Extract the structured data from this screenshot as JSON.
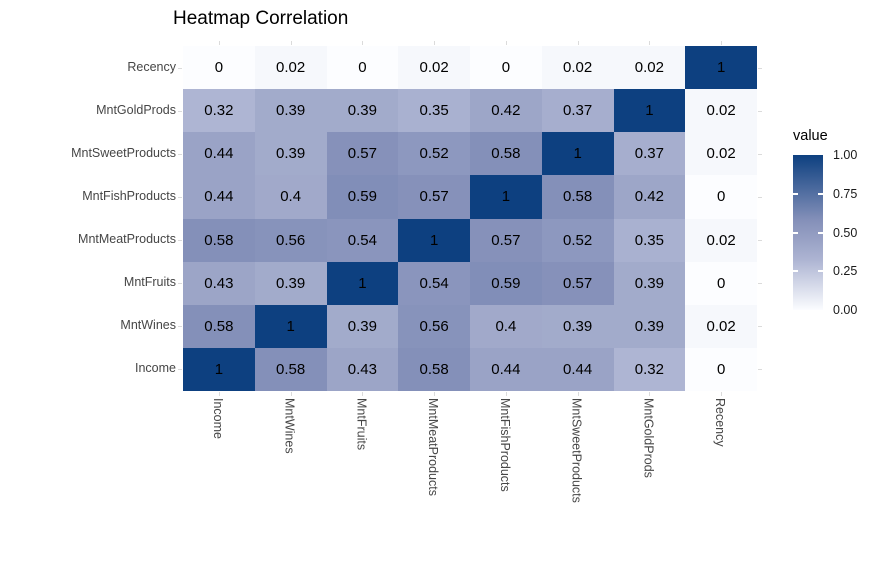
{
  "chart": {
    "title": "Heatmap Correlation"
  },
  "chart_data": {
    "type": "heatmap",
    "title": "Heatmap Correlation",
    "x_categories": [
      "Income",
      "MntWines",
      "MntFruits",
      "MntMeatProducts",
      "MntFishProducts",
      "MntSweetProducts",
      "MntGoldProds",
      "Recency"
    ],
    "y_categories_top_to_bottom": [
      "Recency",
      "MntGoldProds",
      "MntSweetProducts",
      "MntFishProducts",
      "MntMeatProducts",
      "MntFruits",
      "MntWines",
      "Income"
    ],
    "cell_labels": [
      [
        "0",
        "0.02",
        "0",
        "0.02",
        "0",
        "0.02",
        "0.02",
        "1"
      ],
      [
        "0.32",
        "0.39",
        "0.39",
        "0.35",
        "0.42",
        "0.37",
        "1",
        "0.02"
      ],
      [
        "0.44",
        "0.39",
        "0.57",
        "0.52",
        "0.58",
        "1",
        "0.37",
        "0.02"
      ],
      [
        "0.44",
        "0.4",
        "0.59",
        "0.57",
        "1",
        "0.58",
        "0.42",
        "0"
      ],
      [
        "0.58",
        "0.56",
        "0.54",
        "1",
        "0.57",
        "0.52",
        "0.35",
        "0.02"
      ],
      [
        "0.43",
        "0.39",
        "1",
        "0.54",
        "0.59",
        "0.57",
        "0.39",
        "0"
      ],
      [
        "0.58",
        "1",
        "0.39",
        "0.56",
        "0.4",
        "0.39",
        "0.39",
        "0.02"
      ],
      [
        "1",
        "0.58",
        "0.43",
        "0.58",
        "0.44",
        "0.44",
        "0.32",
        "0"
      ]
    ],
    "values": [
      [
        0,
        0.02,
        0,
        0.02,
        0,
        0.02,
        0.02,
        1
      ],
      [
        0.32,
        0.39,
        0.39,
        0.35,
        0.42,
        0.37,
        1,
        0.02
      ],
      [
        0.44,
        0.39,
        0.57,
        0.52,
        0.58,
        1,
        0.37,
        0.02
      ],
      [
        0.44,
        0.4,
        0.59,
        0.57,
        1,
        0.58,
        0.42,
        0
      ],
      [
        0.58,
        0.56,
        0.54,
        1,
        0.57,
        0.52,
        0.35,
        0.02
      ],
      [
        0.43,
        0.39,
        1,
        0.54,
        0.59,
        0.57,
        0.39,
        0
      ],
      [
        0.58,
        1,
        0.39,
        0.56,
        0.4,
        0.39,
        0.39,
        0.02
      ],
      [
        1,
        0.58,
        0.43,
        0.58,
        0.44,
        0.44,
        0.32,
        0
      ]
    ],
    "legend": {
      "title": "value",
      "tick_labels": [
        "1.00",
        "0.75",
        "0.50",
        "0.25",
        "0.00"
      ],
      "tick_values": [
        1.0,
        0.75,
        0.5,
        0.25,
        0.0
      ],
      "position": "right"
    },
    "value_range": [
      0,
      1
    ],
    "grid": "off",
    "colorscale": {
      "low": "#FCFDFF",
      "high": "#0D4080",
      "stops": [
        [
          0.0,
          [
            252,
            253,
            255
          ]
        ],
        [
          0.02,
          [
            246,
            248,
            252
          ]
        ],
        [
          0.32,
          [
            174,
            181,
            211
          ]
        ],
        [
          0.44,
          [
            154,
            163,
            198
          ]
        ],
        [
          0.58,
          [
            132,
            144,
            185
          ]
        ],
        [
          1.0,
          [
            13,
            64,
            128
          ]
        ]
      ]
    },
    "text_color": "#000000",
    "axis_text_color": "#464646"
  }
}
